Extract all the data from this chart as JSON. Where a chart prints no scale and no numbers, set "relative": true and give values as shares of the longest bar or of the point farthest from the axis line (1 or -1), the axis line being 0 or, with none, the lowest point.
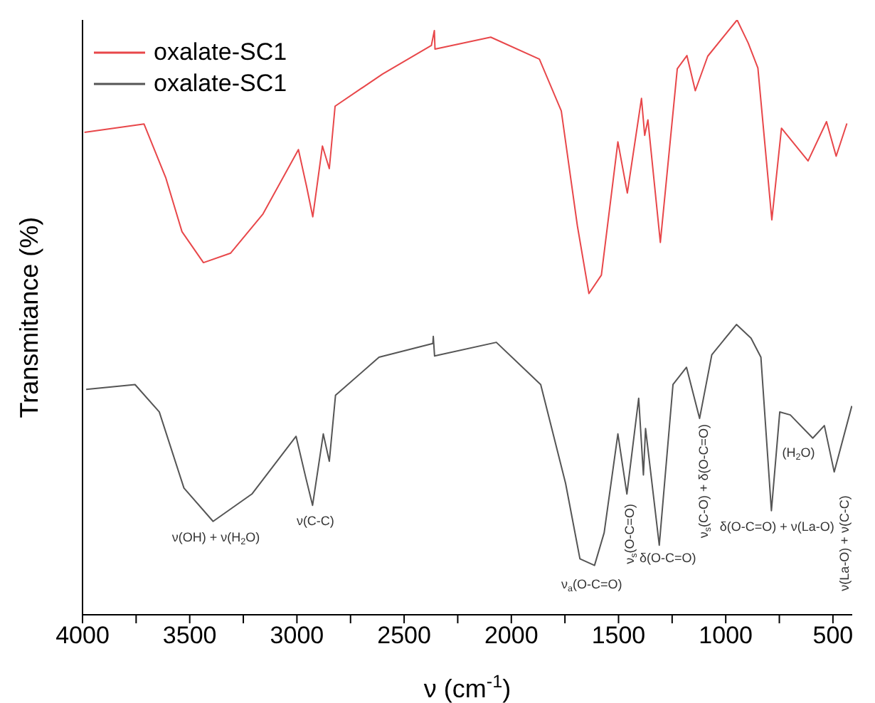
{
  "chart_data": {
    "type": "line",
    "relative": true,
    "xlabel": "ν (cm$^{-1}$)",
    "ylabel": "Transmitance (%)",
    "xlim": [
      4000,
      410
    ],
    "xticks": [
      4000,
      {
        "value": 3750,
        "label": null
      },
      3500,
      {
        "value": 3250,
        "label": null
      },
      3000,
      {
        "value": 2750,
        "label": null
      },
      2500,
      {
        "value": 2250,
        "label": null
      },
      2000,
      {
        "value": 1750,
        "label": null
      },
      1500,
      {
        "value": 1250,
        "label": null
      },
      1000,
      {
        "value": 750,
        "label": null
      },
      500
    ],
    "legend": "top left",
    "grid": false,
    "marker": "none",
    "line_style": "solid",
    "series": [
      {
        "name": "oxalate-SC1",
        "color": "#e8474a",
        "x": [
          3991,
          3713,
          3612,
          3536,
          3436,
          3309,
          3158,
          2993,
          2955,
          2926,
          2881,
          2849,
          2822,
          2601,
          2373,
          2359,
          2356,
          2096,
          1869,
          1767,
          1692,
          1638,
          1580,
          1503,
          1459,
          1393,
          1378,
          1363,
          1305,
          1226,
          1181,
          1142,
          1084,
          947,
          895,
          850,
          785,
          740,
          616,
          530,
          485,
          435
        ],
        "values": [
          0.811,
          0.825,
          0.735,
          0.644,
          0.592,
          0.608,
          0.674,
          0.782,
          0.72,
          0.669,
          0.788,
          0.75,
          0.855,
          0.909,
          0.957,
          0.982,
          0.951,
          0.971,
          0.934,
          0.847,
          0.654,
          0.54,
          0.571,
          0.795,
          0.709,
          0.868,
          0.806,
          0.832,
          0.626,
          0.918,
          0.94,
          0.881,
          0.939,
          1.0,
          0.961,
          0.919,
          0.664,
          0.818,
          0.763,
          0.829,
          0.771,
          0.826
        ]
      },
      {
        "name": "oxalate-SC1",
        "color": "#555555",
        "x": [
          3983,
          3755,
          3642,
          3527,
          3391,
          3210,
          3004,
          2959,
          2927,
          2877,
          2849,
          2820,
          2617,
          2366,
          2364,
          2358,
          2070,
          1863,
          1747,
          1680,
          1612,
          1567,
          1503,
          1461,
          1406,
          1384,
          1374,
          1310,
          1246,
          1183,
          1122,
          1065,
          950,
          882,
          836,
          787,
          748,
          699,
          594,
          540,
          494,
          412
        ],
        "values": [
          0.379,
          0.387,
          0.341,
          0.213,
          0.157,
          0.203,
          0.3,
          0.231,
          0.184,
          0.304,
          0.258,
          0.369,
          0.433,
          0.456,
          0.468,
          0.435,
          0.458,
          0.387,
          0.221,
          0.094,
          0.083,
          0.138,
          0.304,
          0.203,
          0.364,
          0.235,
          0.313,
          0.117,
          0.387,
          0.416,
          0.33,
          0.437,
          0.488,
          0.465,
          0.433,
          0.175,
          0.341,
          0.336,
          0.297,
          0.318,
          0.24,
          0.351
        ]
      }
    ],
    "annotations": [
      {
        "text": "ν(OH) + ν(H$_{2}$O)",
        "x": 3391,
        "y": 0.157
      },
      {
        "text": "ν(C-C)",
        "x": 2927,
        "y": 0.184
      },
      {
        "text": "ν$_{a}$(O-C=O)",
        "x": 1612,
        "y": 0.083
      },
      {
        "text": "ν$_{s}$(O-C=O)",
        "x": 1461,
        "y": 0.203
      },
      {
        "text": "δ(O-C=O)",
        "x": 1310,
        "y": 0.117
      },
      {
        "text": "ν$_{s}$(C-O) + δ(O-C=O)",
        "x": 1122,
        "y": 0.33
      },
      {
        "text": "δ(O-C=O) + ν(La-O)",
        "x": 787,
        "y": 0.175
      },
      {
        "text": "(H$_{2}$O)",
        "x": 594,
        "y": 0.297
      },
      {
        "text": "ν(La-O) + ν(C-C)",
        "x": 494,
        "y": 0.24
      }
    ]
  }
}
